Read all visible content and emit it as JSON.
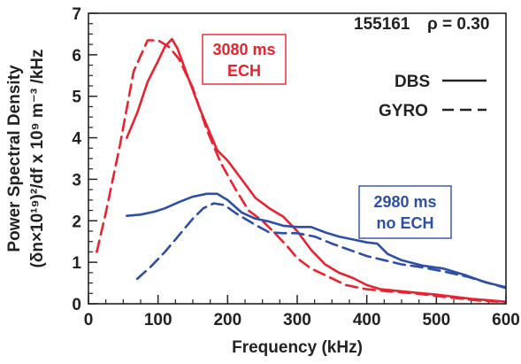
{
  "chart_data": {
    "type": "line",
    "xlabel": "Frequency (kHz)",
    "ylabel_line1": "Power Spectral Density",
    "ylabel_line2": "(δn×10¹⁹)²/df x 10⁹ m⁻³ /kHz",
    "xlim": [
      0,
      600
    ],
    "ylim": [
      0,
      7
    ],
    "x_ticks": [
      0,
      100,
      200,
      300,
      400,
      500,
      600
    ],
    "y_ticks": [
      0,
      1,
      2,
      3,
      4,
      5,
      6,
      7
    ],
    "grid": false,
    "annotations": {
      "shot": "155161",
      "rho": "ρ = 0.30",
      "ech_on_time": "3080 ms",
      "ech_on_label": "ECH",
      "ech_off_time": "2980 ms",
      "ech_off_label": "no ECH"
    },
    "legend": {
      "placement": "top-right",
      "entries": [
        {
          "label": "DBS",
          "style": "solid"
        },
        {
          "label": "GYRO",
          "style": "dashed"
        }
      ]
    },
    "colors": {
      "red": "#e8222e",
      "blue": "#2e4fa6"
    },
    "series": [
      {
        "group": "3080 ms ECH",
        "source": "DBS",
        "style": "solid",
        "color": "#e8222e",
        "points": [
          [
            55,
            4.0
          ],
          [
            70,
            4.6
          ],
          [
            85,
            5.35
          ],
          [
            100,
            5.85
          ],
          [
            110,
            6.2
          ],
          [
            120,
            6.38
          ],
          [
            128,
            6.15
          ],
          [
            140,
            5.6
          ],
          [
            160,
            4.7
          ],
          [
            185,
            3.7
          ],
          [
            200,
            3.45
          ],
          [
            220,
            3.0
          ],
          [
            240,
            2.55
          ],
          [
            260,
            2.3
          ],
          [
            280,
            2.1
          ],
          [
            300,
            1.75
          ],
          [
            320,
            1.3
          ],
          [
            340,
            0.95
          ],
          [
            360,
            0.75
          ],
          [
            380,
            0.62
          ],
          [
            400,
            0.45
          ],
          [
            420,
            0.35
          ],
          [
            450,
            0.3
          ],
          [
            500,
            0.22
          ],
          [
            550,
            0.12
          ],
          [
            600,
            0.05
          ]
        ]
      },
      {
        "group": "3080 ms ECH",
        "source": "GYRO",
        "style": "dashed",
        "color": "#e8222e",
        "points": [
          [
            12,
            1.25
          ],
          [
            25,
            2.2
          ],
          [
            45,
            3.8
          ],
          [
            65,
            5.6
          ],
          [
            85,
            6.35
          ],
          [
            100,
            6.35
          ],
          [
            115,
            6.2
          ],
          [
            130,
            5.9
          ],
          [
            150,
            5.2
          ],
          [
            170,
            4.2
          ],
          [
            190,
            3.4
          ],
          [
            210,
            2.8
          ],
          [
            230,
            2.25
          ],
          [
            250,
            2.0
          ],
          [
            265,
            1.75
          ],
          [
            285,
            1.4
          ],
          [
            300,
            1.1
          ],
          [
            320,
            0.85
          ],
          [
            345,
            0.65
          ],
          [
            370,
            0.45
          ],
          [
            400,
            0.35
          ],
          [
            430,
            0.3
          ],
          [
            470,
            0.25
          ],
          [
            520,
            0.15
          ],
          [
            560,
            0.08
          ],
          [
            600,
            0.04
          ]
        ]
      },
      {
        "group": "2980 ms no ECH",
        "source": "DBS",
        "style": "solid",
        "color": "#2e4fa6",
        "points": [
          [
            55,
            2.12
          ],
          [
            75,
            2.15
          ],
          [
            95,
            2.22
          ],
          [
            110,
            2.3
          ],
          [
            130,
            2.45
          ],
          [
            150,
            2.58
          ],
          [
            170,
            2.65
          ],
          [
            185,
            2.65
          ],
          [
            200,
            2.5
          ],
          [
            220,
            2.2
          ],
          [
            240,
            2.05
          ],
          [
            260,
            1.98
          ],
          [
            280,
            1.88
          ],
          [
            300,
            1.85
          ],
          [
            320,
            1.85
          ],
          [
            340,
            1.72
          ],
          [
            360,
            1.62
          ],
          [
            380,
            1.55
          ],
          [
            400,
            1.48
          ],
          [
            415,
            1.45
          ],
          [
            430,
            1.2
          ],
          [
            450,
            1.05
          ],
          [
            480,
            0.92
          ],
          [
            510,
            0.85
          ],
          [
            540,
            0.7
          ],
          [
            570,
            0.52
          ],
          [
            600,
            0.4
          ]
        ]
      },
      {
        "group": "2980 ms no ECH",
        "source": "GYRO",
        "style": "dashed",
        "color": "#2e4fa6",
        "points": [
          [
            70,
            0.6
          ],
          [
            90,
            0.9
          ],
          [
            110,
            1.25
          ],
          [
            130,
            1.65
          ],
          [
            150,
            2.05
          ],
          [
            165,
            2.3
          ],
          [
            180,
            2.42
          ],
          [
            195,
            2.38
          ],
          [
            215,
            2.15
          ],
          [
            240,
            1.9
          ],
          [
            260,
            1.72
          ],
          [
            280,
            1.7
          ],
          [
            300,
            1.7
          ],
          [
            325,
            1.62
          ],
          [
            350,
            1.45
          ],
          [
            375,
            1.3
          ],
          [
            400,
            1.15
          ],
          [
            425,
            1.05
          ],
          [
            450,
            0.95
          ],
          [
            480,
            0.88
          ],
          [
            510,
            0.78
          ],
          [
            545,
            0.65
          ],
          [
            575,
            0.5
          ],
          [
            600,
            0.38
          ]
        ]
      }
    ]
  }
}
